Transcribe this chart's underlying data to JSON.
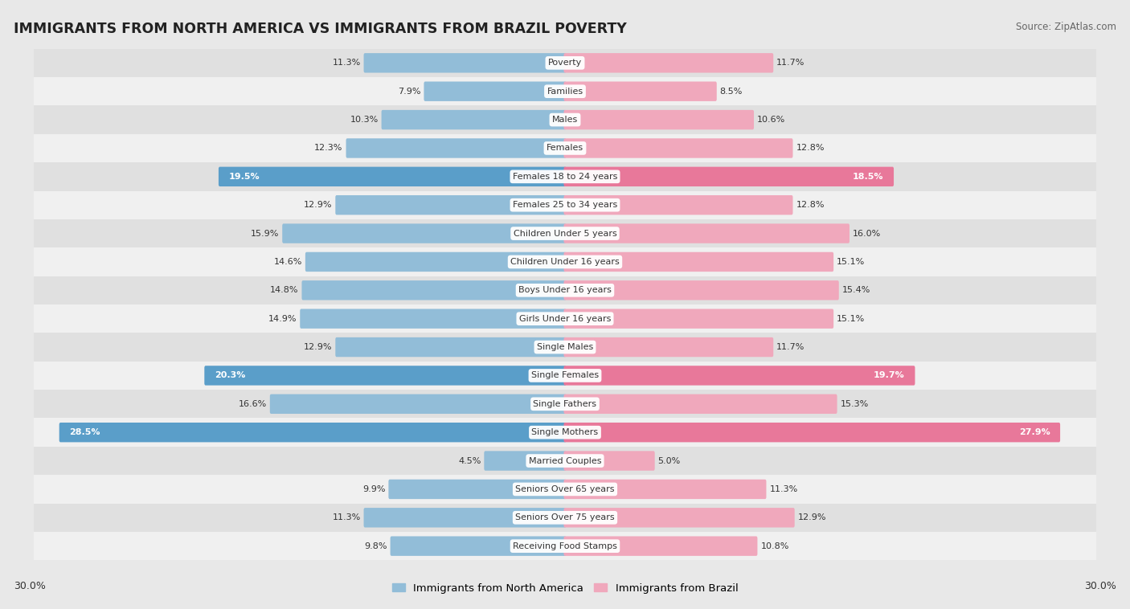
{
  "title": "IMMIGRANTS FROM NORTH AMERICA VS IMMIGRANTS FROM BRAZIL POVERTY",
  "source": "Source: ZipAtlas.com",
  "categories": [
    "Poverty",
    "Families",
    "Males",
    "Females",
    "Females 18 to 24 years",
    "Females 25 to 34 years",
    "Children Under 5 years",
    "Children Under 16 years",
    "Boys Under 16 years",
    "Girls Under 16 years",
    "Single Males",
    "Single Females",
    "Single Fathers",
    "Single Mothers",
    "Married Couples",
    "Seniors Over 65 years",
    "Seniors Over 75 years",
    "Receiving Food Stamps"
  ],
  "north_america": [
    11.3,
    7.9,
    10.3,
    12.3,
    19.5,
    12.9,
    15.9,
    14.6,
    14.8,
    14.9,
    12.9,
    20.3,
    16.6,
    28.5,
    4.5,
    9.9,
    11.3,
    9.8
  ],
  "brazil": [
    11.7,
    8.5,
    10.6,
    12.8,
    18.5,
    12.8,
    16.0,
    15.1,
    15.4,
    15.1,
    11.7,
    19.7,
    15.3,
    27.9,
    5.0,
    11.3,
    12.9,
    10.8
  ],
  "color_na": "#92bdd8",
  "color_brazil": "#f0a8bc",
  "color_na_dark": "#5a9ec9",
  "color_brazil_dark": "#e8789a",
  "bg_color": "#e8e8e8",
  "row_bg_even": "#e0e0e0",
  "row_bg_odd": "#f0f0f0",
  "xmax": 30.0,
  "legend_na": "Immigrants from North America",
  "legend_brazil": "Immigrants from Brazil",
  "high_threshold_na": 19.0,
  "high_threshold_br": 18.5
}
